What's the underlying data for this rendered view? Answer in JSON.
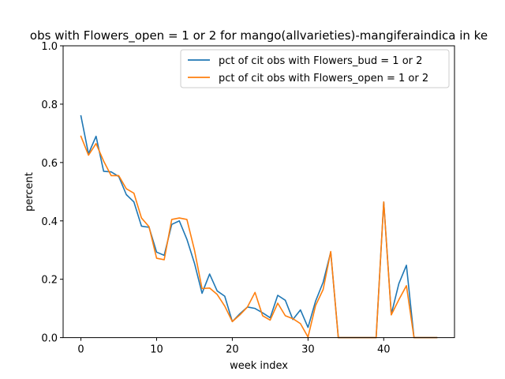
{
  "chart_data": {
    "type": "line",
    "title": "obs with Flowers_open = 1 or 2 for mango(allvarieties)-mangiferaindica in ke",
    "xlabel": "week index",
    "ylabel": "percent",
    "xlim": [
      -2.35,
      49.35
    ],
    "ylim": [
      0,
      1.0
    ],
    "xticks": [
      0,
      10,
      20,
      30,
      40
    ],
    "yticks": [
      0.0,
      0.2,
      0.4,
      0.6,
      0.8,
      1.0
    ],
    "ytick_labels": [
      "0.0",
      "0.2",
      "0.4",
      "0.6",
      "0.8",
      "1.0"
    ],
    "legend_position": "top-right",
    "grid": false,
    "series": [
      {
        "name": "pct of cit obs with Flowers_bud = 1 or 2",
        "color": "#1f77b4",
        "x": [
          0,
          1,
          2,
          3,
          4,
          5,
          6,
          7,
          8,
          9,
          10,
          11,
          12,
          13,
          14,
          15,
          16,
          17,
          18,
          19,
          20,
          21,
          22,
          23,
          24,
          25,
          26,
          27,
          28,
          29,
          30,
          31,
          32,
          33,
          34,
          35,
          36,
          37,
          38,
          39,
          40,
          41,
          42,
          43,
          44,
          45,
          46,
          47
        ],
        "values": [
          0.76,
          0.63,
          0.69,
          0.57,
          0.568,
          0.552,
          0.49,
          0.465,
          0.382,
          0.378,
          0.293,
          0.282,
          0.388,
          0.4,
          0.337,
          0.255,
          0.152,
          0.218,
          0.16,
          0.142,
          0.055,
          0.082,
          0.105,
          0.1,
          0.085,
          0.068,
          0.145,
          0.128,
          0.062,
          0.095,
          0.035,
          0.125,
          0.19,
          0.293,
          0,
          0,
          0,
          0,
          0,
          0,
          0.465,
          0.08,
          0.185,
          0.248,
          0,
          0,
          0,
          0
        ]
      },
      {
        "name": "pct of cit obs with Flowers_open = 1 or 2",
        "color": "#ff7f0e",
        "x": [
          0,
          1,
          2,
          3,
          4,
          5,
          6,
          7,
          8,
          9,
          10,
          11,
          12,
          13,
          14,
          15,
          16,
          17,
          18,
          19,
          20,
          21,
          22,
          23,
          24,
          25,
          26,
          27,
          28,
          29,
          30,
          31,
          32,
          33,
          34,
          35,
          36,
          37,
          38,
          39,
          40,
          41,
          42,
          43,
          44,
          45,
          46,
          47
        ],
        "values": [
          0.69,
          0.625,
          0.665,
          0.605,
          0.555,
          0.555,
          0.51,
          0.495,
          0.41,
          0.38,
          0.272,
          0.267,
          0.405,
          0.41,
          0.405,
          0.3,
          0.168,
          0.17,
          0.148,
          0.108,
          0.055,
          0.078,
          0.105,
          0.155,
          0.075,
          0.06,
          0.118,
          0.075,
          0.065,
          0.048,
          0.002,
          0.11,
          0.165,
          0.295,
          0,
          0,
          0,
          0,
          0,
          0,
          0.465,
          0.078,
          0.13,
          0.178,
          0,
          0,
          0,
          0
        ]
      }
    ]
  }
}
